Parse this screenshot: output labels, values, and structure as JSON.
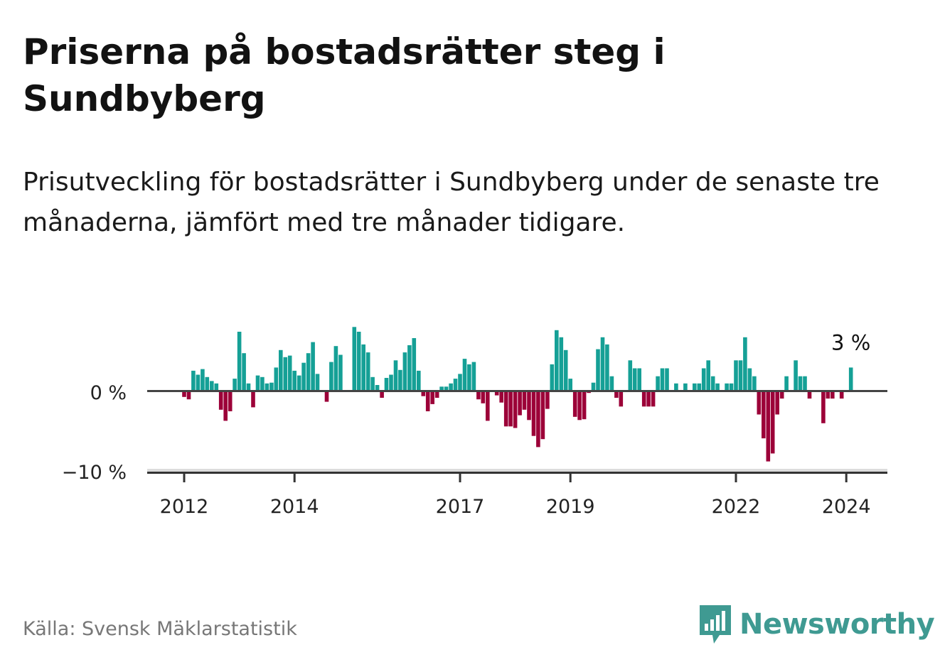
{
  "title": "Priserna på bostadsrätter steg i Sundbyberg",
  "subtitle": "Prisutveckling för bostadsrätter i Sundbyberg under de senaste tre månaderna, jämfört med tre månader tidigare.",
  "source": "Källa: Svensk Mäklarstatistik",
  "brand": "Newsworthy",
  "colors": {
    "positive": "#15a096",
    "negative": "#9c0038",
    "brand": "#3f9a92"
  },
  "chart_data": {
    "type": "bar",
    "title": "Priserna på bostadsrätter steg i Sundbyberg",
    "xlabel": "",
    "ylabel": "",
    "start": "2012-01",
    "frequency": "monthly",
    "ylim": [
      -10,
      8.5
    ],
    "yticks": [
      {
        "value": 0,
        "label": "0 %"
      },
      {
        "value": -10,
        "label": "−10 %"
      }
    ],
    "xticks": [
      {
        "year": 2012,
        "label": "2012"
      },
      {
        "year": 2014,
        "label": "2014"
      },
      {
        "year": 2017,
        "label": "2017"
      },
      {
        "year": 2019,
        "label": "2019"
      },
      {
        "year": 2022,
        "label": "2022"
      },
      {
        "year": 2024,
        "label": "2024"
      }
    ],
    "last_label": "3 %",
    "values": [
      -0.7,
      -1.0,
      2.6,
      2.1,
      2.8,
      1.8,
      1.3,
      1.0,
      -2.3,
      -3.7,
      -2.5,
      1.6,
      7.5,
      4.8,
      1.0,
      -2.0,
      2.0,
      1.8,
      1.0,
      1.1,
      3.0,
      5.2,
      4.3,
      4.5,
      2.6,
      2.0,
      3.6,
      4.8,
      6.2,
      2.2,
      0,
      -1.3,
      3.7,
      5.7,
      4.6,
      0,
      0,
      8.1,
      7.5,
      5.9,
      4.9,
      1.8,
      0.8,
      -0.8,
      1.7,
      2.1,
      3.9,
      2.7,
      4.9,
      5.8,
      6.7,
      2.6,
      -0.6,
      -2.5,
      -1.6,
      -0.8,
      0.6,
      0.6,
      1.0,
      1.6,
      2.2,
      4.1,
      3.4,
      3.7,
      -1.0,
      -1.5,
      -3.7,
      0,
      -0.5,
      -1.4,
      -4.4,
      -4.4,
      -4.6,
      -3.0,
      -2.3,
      -3.6,
      -5.6,
      -7.0,
      -6.0,
      -2.2,
      3.4,
      7.7,
      6.8,
      5.2,
      1.6,
      -3.2,
      -3.6,
      -3.5,
      -0.2,
      1.1,
      5.3,
      6.8,
      5.9,
      1.9,
      -0.8,
      -1.9,
      0,
      3.9,
      2.9,
      2.9,
      -1.9,
      -1.9,
      -1.9,
      1.9,
      2.9,
      2.9,
      0,
      1.0,
      0,
      1.0,
      0,
      1.0,
      1.0,
      2.9,
      3.9,
      1.9,
      1.0,
      0,
      1.0,
      1.0,
      3.9,
      3.9,
      6.8,
      2.9,
      1.9,
      -2.9,
      -5.9,
      -8.8,
      -7.8,
      -2.9,
      -0.9,
      1.9,
      0,
      3.9,
      1.9,
      1.9,
      -0.9,
      0,
      0,
      -4.0,
      -0.9,
      -0.9,
      0,
      -0.9,
      0,
      3
    ]
  }
}
